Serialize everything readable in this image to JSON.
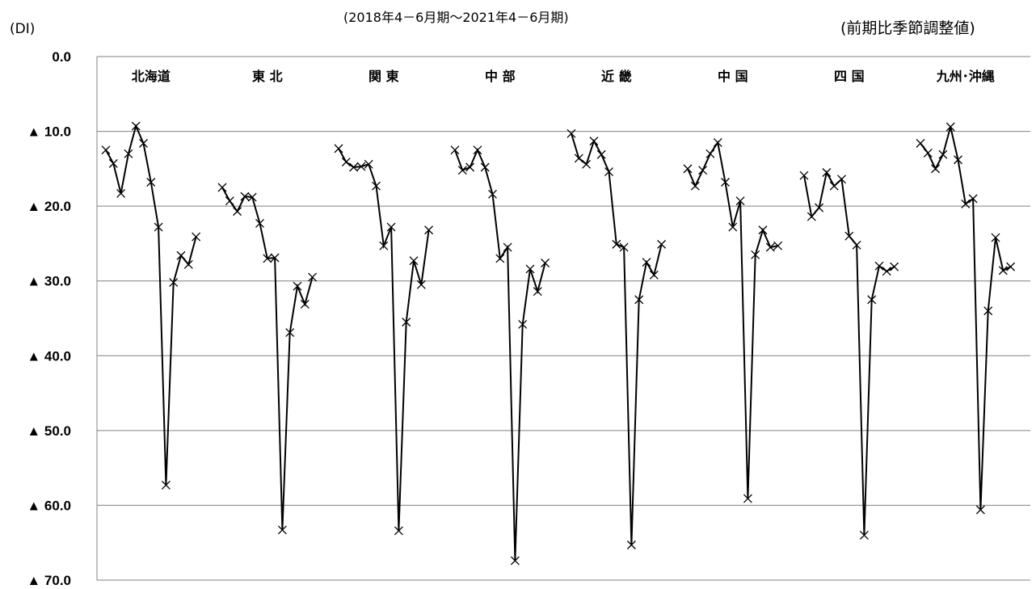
{
  "header": {
    "subtitle": "(2018年4－6月期～2021年4－6月期)",
    "unit_left": "(DI)",
    "unit_right": "(前期比季節調整値)"
  },
  "chart_data": {
    "type": "line",
    "ylim": [
      0,
      70
    ],
    "y_reversed": true,
    "y_tick_labels": [
      "0.0",
      "▲ 10.0",
      "▲ 20.0",
      "▲ 30.0",
      "▲ 40.0",
      "▲ 50.0",
      "▲ 60.0",
      "▲ 70.0"
    ],
    "grid": true,
    "marker": "x",
    "line_color": "#000000",
    "series": [
      {
        "name": "北海道",
        "values": [
          -12.5,
          -14.3,
          -18.3,
          -13.0,
          -9.3,
          -11.6,
          -16.8,
          -22.8,
          -57.3,
          -30.2,
          -26.6,
          -27.8,
          -24.1
        ]
      },
      {
        "name": "東 北",
        "values": [
          -17.5,
          -19.3,
          -20.7,
          -18.7,
          -18.8,
          -22.3,
          -27.0,
          -26.9,
          -63.3,
          -36.9,
          -30.7,
          -33.1,
          -29.5
        ]
      },
      {
        "name": "関 東",
        "values": [
          -12.3,
          -14.1,
          -14.8,
          -14.7,
          -14.4,
          -17.3,
          -25.3,
          -22.8,
          -63.4,
          -35.5,
          -27.3,
          -30.5,
          -23.2
        ]
      },
      {
        "name": "中 部",
        "values": [
          -12.5,
          -15.2,
          -14.8,
          -12.5,
          -14.8,
          -18.4,
          -27.0,
          -25.5,
          -67.4,
          -35.8,
          -28.4,
          -31.4,
          -27.6
        ]
      },
      {
        "name": "近 畿",
        "values": [
          -10.3,
          -13.6,
          -14.4,
          -11.3,
          -13.1,
          -15.4,
          -25.1,
          -25.5,
          -65.3,
          -32.5,
          -27.5,
          -29.2,
          -25.1
        ]
      },
      {
        "name": "中 国",
        "values": [
          -15.0,
          -17.3,
          -15.2,
          -13.0,
          -11.5,
          -16.8,
          -22.8,
          -19.3,
          -59.1,
          -26.5,
          -23.2,
          -25.5,
          -25.3
        ]
      },
      {
        "name": "四 国",
        "values": [
          -15.9,
          -21.4,
          -20.2,
          -15.5,
          -17.3,
          -16.4,
          -24.0,
          -25.2,
          -64.0,
          -32.5,
          -28.0,
          -28.7,
          -28.1
        ]
      },
      {
        "name": "九州･沖縄",
        "values": [
          -11.6,
          -12.9,
          -15.0,
          -13.1,
          -9.4,
          -13.8,
          -19.7,
          -19.0,
          -60.6,
          -34.0,
          -24.2,
          -28.6,
          -28.1
        ]
      }
    ]
  }
}
